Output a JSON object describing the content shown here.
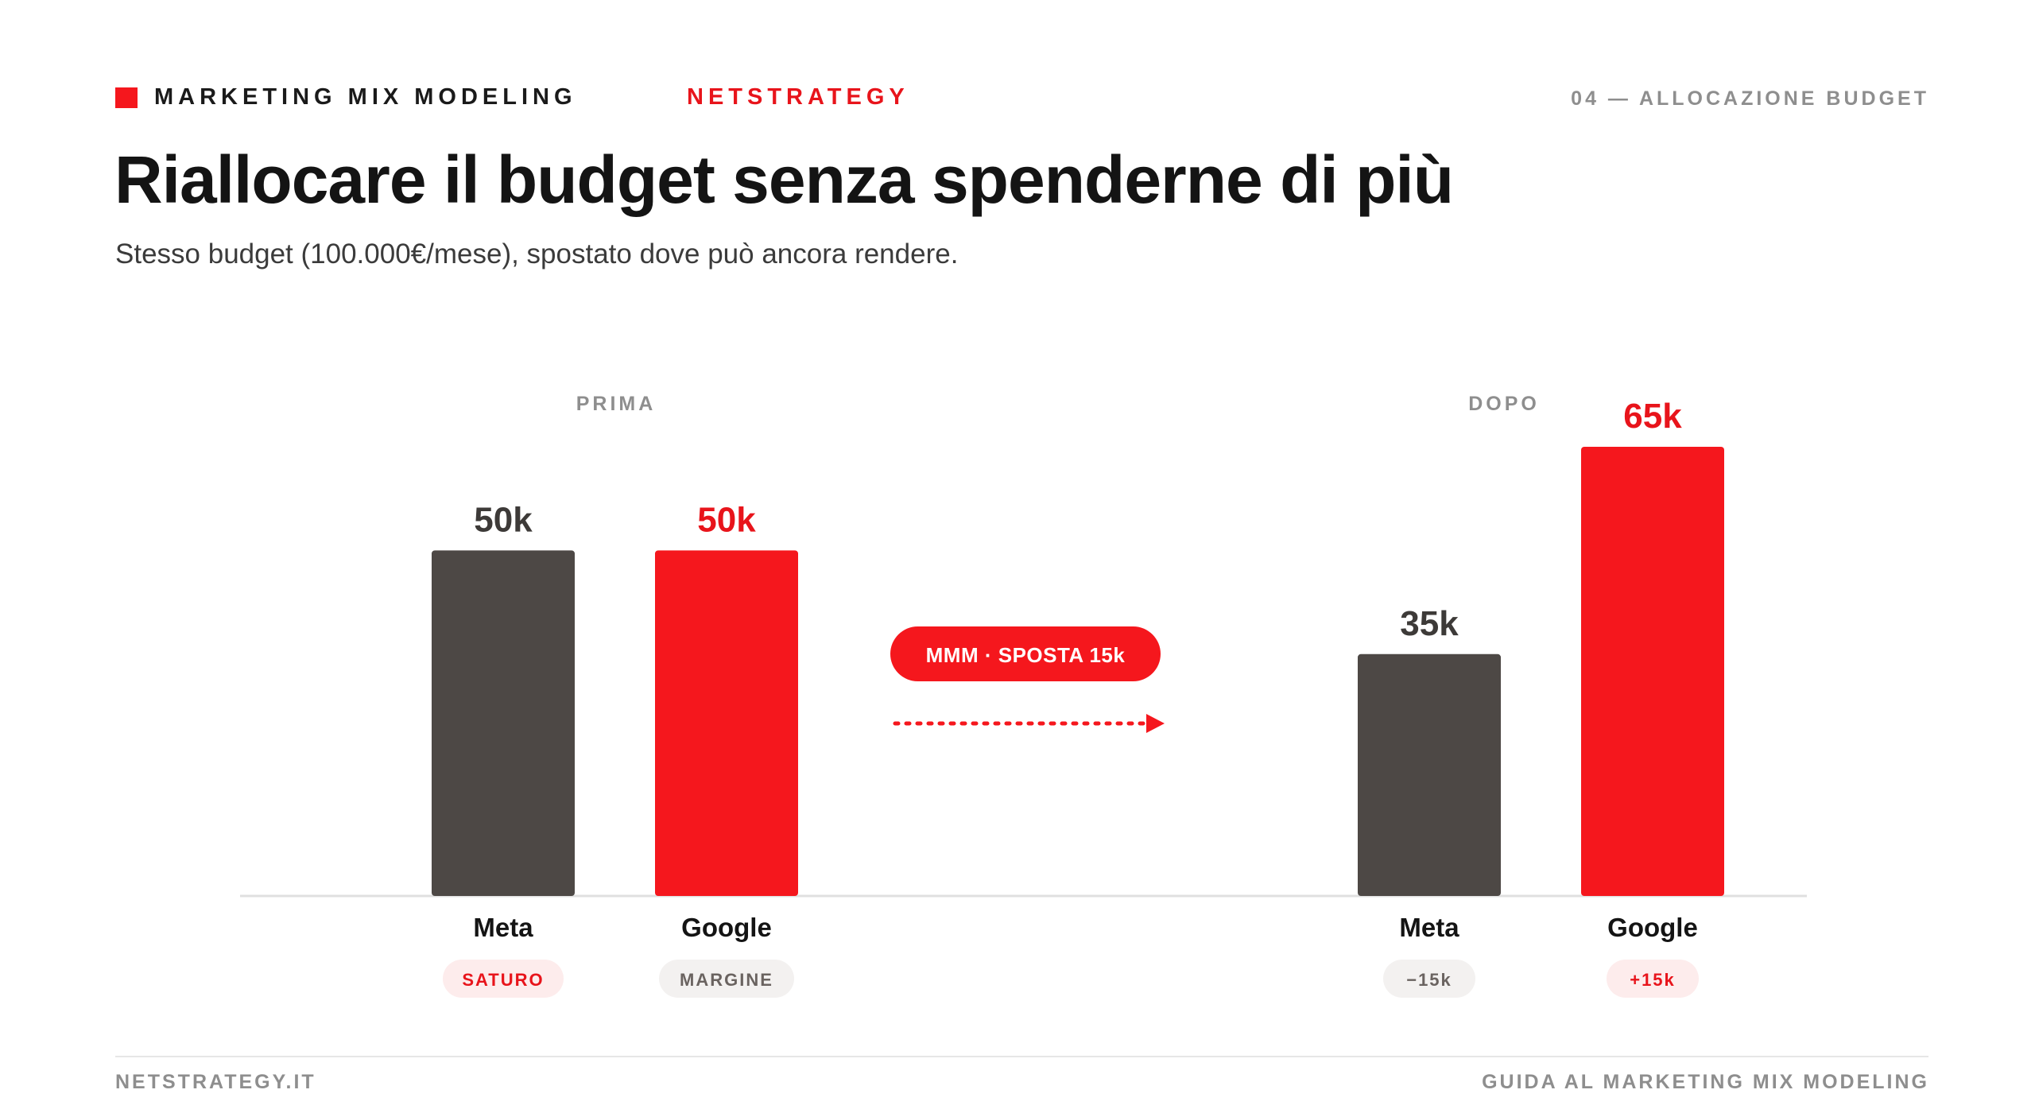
{
  "header": {
    "kicker": "MARKETING MIX MODELING",
    "brand": "NETSTRATEGY",
    "section": "04 — ALLOCAZIONE BUDGET"
  },
  "title": "Riallocare il budget senza spenderne di più",
  "subtitle": "Stesso budget (100.000€/mese), spostato dove può ancora rendere.",
  "footer": {
    "left": "NETSTRATEGY.IT",
    "right": "GUIDA AL MARKETING MIX MODELING"
  },
  "colors": {
    "accent": "#f5171d",
    "dark_bar": "#4d4845",
    "muted": "#8e8e8e",
    "baseline": "#e0e0e0"
  },
  "chart_data": {
    "type": "bar",
    "unit": "k",
    "groups": [
      {
        "label": "PRIMA",
        "bars": [
          {
            "category": "Meta",
            "value": 50,
            "value_label": "50k",
            "badge": "SATURO",
            "color": "#4d4845",
            "badge_style": "accent"
          },
          {
            "category": "Google",
            "value": 50,
            "value_label": "50k",
            "badge": "MARGINE",
            "color": "#f5171d",
            "badge_style": "neutral"
          }
        ]
      },
      {
        "label": "DOPO",
        "bars": [
          {
            "category": "Meta",
            "value": 35,
            "value_label": "35k",
            "badge": "−15k",
            "color": "#4d4845",
            "badge_style": "neutral"
          },
          {
            "category": "Google",
            "value": 65,
            "value_label": "65k",
            "badge": "+15k",
            "color": "#f5171d",
            "badge_style": "accent"
          }
        ]
      }
    ],
    "transfer": {
      "label": "MMM · SPOSTA 15k",
      "arrow": "dotted"
    },
    "ylim": [
      0,
      65
    ]
  }
}
